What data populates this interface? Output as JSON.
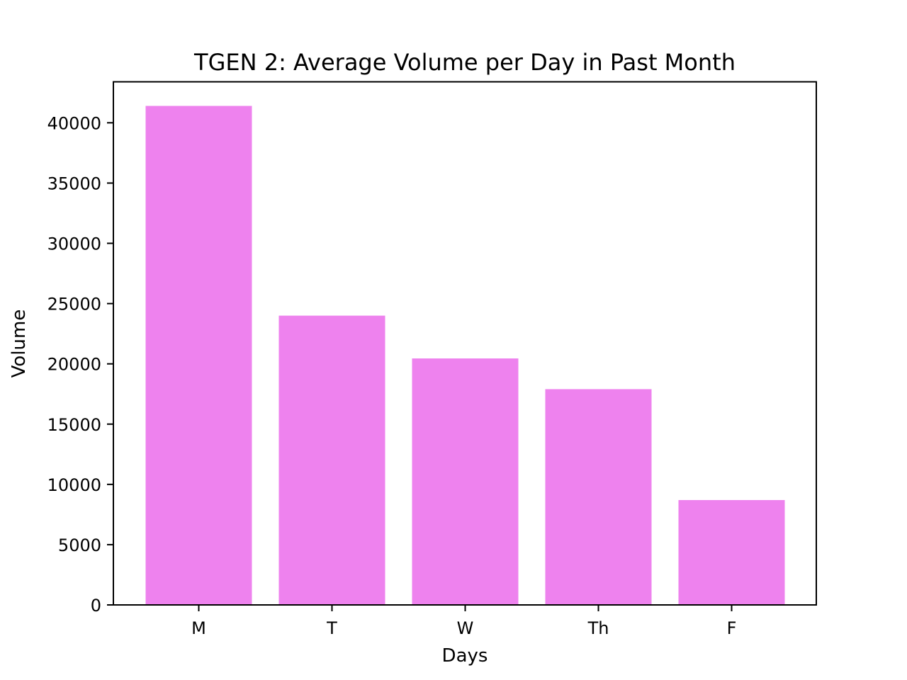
{
  "chart_data": {
    "type": "bar",
    "title": "TGEN 2: Average Volume per Day in Past Month",
    "xlabel": "Days",
    "ylabel": "Volume",
    "categories": [
      "M",
      "T",
      "W",
      "Th",
      "F"
    ],
    "values": [
      41400,
      24000,
      20450,
      17900,
      8700
    ],
    "ylim": [
      0,
      43400
    ],
    "yticks": [
      0,
      5000,
      10000,
      15000,
      20000,
      25000,
      30000,
      35000,
      40000
    ],
    "bar_color": "#ee82ee",
    "grid": false,
    "legend": "none"
  }
}
